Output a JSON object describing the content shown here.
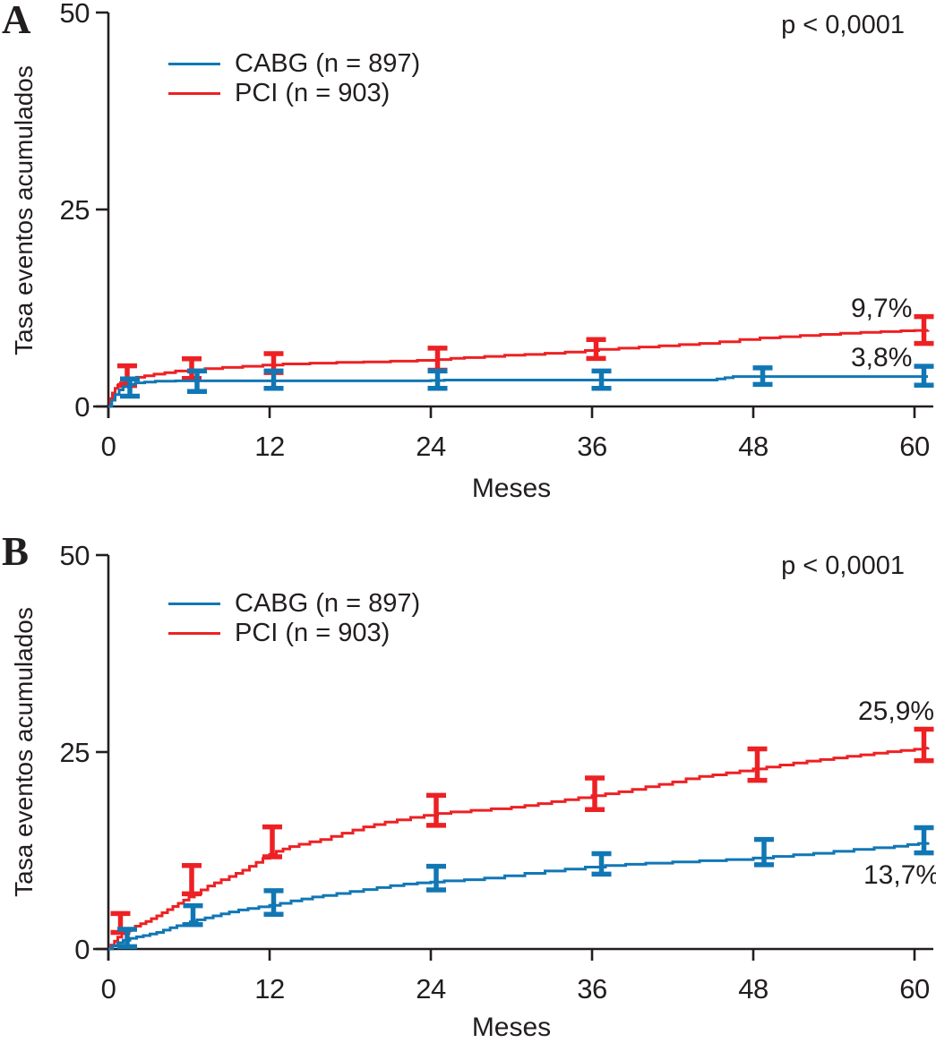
{
  "figure": {
    "background": "#ffffff"
  },
  "colors": {
    "cabg": "#1177b4",
    "pci": "#ed2124",
    "axis": "#221e1f",
    "text": "#221e1f"
  },
  "chart_data": [
    {
      "type": "line",
      "step": true,
      "panel_label": "A",
      "p_value": "p < 0,0001",
      "xlabel": "Meses",
      "ylabel": "Tasa eventos acumulados",
      "axis": {
        "xticks": [
          0,
          12,
          24,
          36,
          48,
          60
        ],
        "yticks": [
          0,
          25,
          50
        ],
        "xlim": [
          0,
          61.5
        ],
        "ylim": [
          0,
          50
        ],
        "grid": false,
        "legend_position": "upper-left"
      },
      "series": [
        {
          "name": "CABG",
          "legend_label": "CABG (n = 897)",
          "color": "#1177b4",
          "end_label": "3,8%",
          "steps": [
            [
              0,
              0
            ],
            [
              0.25,
              0.8
            ],
            [
              0.5,
              1.5
            ],
            [
              0.8,
              2.1
            ],
            [
              1.1,
              2.5
            ],
            [
              1.5,
              2.8
            ],
            [
              2,
              3.0
            ],
            [
              2.7,
              3.1
            ],
            [
              3.5,
              3.2
            ],
            [
              5,
              3.25
            ],
            [
              24,
              3.3
            ],
            [
              25,
              3.35
            ],
            [
              44.8,
              3.35
            ],
            [
              45.3,
              3.5
            ],
            [
              45.9,
              3.65
            ],
            [
              46.5,
              3.8
            ],
            [
              61,
              3.8
            ]
          ],
          "error_bars": [
            {
              "month": 1.6,
              "value": 2.4,
              "half": 1.1
            },
            {
              "month": 6.6,
              "value": 3.2,
              "half": 1.3
            },
            {
              "month": 12.3,
              "value": 3.4,
              "half": 1.1
            },
            {
              "month": 24.5,
              "value": 3.4,
              "half": 1.1
            },
            {
              "month": 36.7,
              "value": 3.4,
              "half": 1.1
            },
            {
              "month": 48.7,
              "value": 3.85,
              "half": 1.05
            },
            {
              "month": 60.7,
              "value": 3.9,
              "half": 1.2
            }
          ]
        },
        {
          "name": "PCI",
          "legend_label": "PCI (n = 903)",
          "color": "#ed2124",
          "end_label": "9,7%",
          "steps": [
            [
              0,
              0
            ],
            [
              0.15,
              1.0
            ],
            [
              0.3,
              1.7
            ],
            [
              0.5,
              2.3
            ],
            [
              0.7,
              2.7
            ],
            [
              0.9,
              3.0
            ],
            [
              1.2,
              3.3
            ],
            [
              1.6,
              3.5
            ],
            [
              2.1,
              3.7
            ],
            [
              2.7,
              3.9
            ],
            [
              3.4,
              4.1
            ],
            [
              4.2,
              4.3
            ],
            [
              5,
              4.5
            ],
            [
              6,
              4.65
            ],
            [
              7.2,
              4.8
            ],
            [
              8.5,
              4.95
            ],
            [
              10,
              5.1
            ],
            [
              11.5,
              5.25
            ],
            [
              13,
              5.4
            ],
            [
              15,
              5.5
            ],
            [
              17,
              5.6
            ],
            [
              19,
              5.65
            ],
            [
              21,
              5.75
            ],
            [
              23,
              5.85
            ],
            [
              24.5,
              5.95
            ],
            [
              25.5,
              6.1
            ],
            [
              26.5,
              6.2
            ],
            [
              28,
              6.35
            ],
            [
              29.5,
              6.5
            ],
            [
              31,
              6.6
            ],
            [
              32.5,
              6.75
            ],
            [
              34,
              6.9
            ],
            [
              35.5,
              7.1
            ],
            [
              36.5,
              7.25
            ],
            [
              38,
              7.4
            ],
            [
              39.5,
              7.55
            ],
            [
              41,
              7.7
            ],
            [
              42.5,
              7.85
            ],
            [
              44,
              8.0
            ],
            [
              45.5,
              8.2
            ],
            [
              47,
              8.5
            ],
            [
              48.5,
              8.7
            ],
            [
              50,
              8.85
            ],
            [
              51.5,
              9.0
            ],
            [
              53,
              9.15
            ],
            [
              54.5,
              9.3
            ],
            [
              56,
              9.4
            ],
            [
              57.5,
              9.5
            ],
            [
              59,
              9.6
            ],
            [
              60,
              9.65
            ],
            [
              61,
              9.7
            ]
          ],
          "error_bars": [
            {
              "month": 1.4,
              "value": 3.9,
              "half": 1.25
            },
            {
              "month": 6.2,
              "value": 4.8,
              "half": 1.25
            },
            {
              "month": 12.3,
              "value": 5.5,
              "half": 1.2
            },
            {
              "month": 24.5,
              "value": 6.0,
              "half": 1.4
            },
            {
              "month": 36.3,
              "value": 7.3,
              "half": 1.2
            },
            {
              "month": 60.7,
              "value": 9.7,
              "half": 1.7
            }
          ]
        }
      ]
    },
    {
      "type": "line",
      "step": true,
      "panel_label": "B",
      "p_value": "p < 0,0001",
      "xlabel": "Meses",
      "ylabel": "Tasa eventos acumulados",
      "axis": {
        "xticks": [
          0,
          12,
          24,
          36,
          48,
          60
        ],
        "yticks": [
          0,
          25,
          50
        ],
        "xlim": [
          0,
          61.5
        ],
        "ylim": [
          0,
          50
        ],
        "grid": false,
        "legend_position": "upper-left"
      },
      "series": [
        {
          "name": "CABG",
          "legend_label": "CABG (n = 897)",
          "color": "#1177b4",
          "end_label": "13,7%",
          "steps": [
            [
              0,
              0
            ],
            [
              0.3,
              0.4
            ],
            [
              0.7,
              0.8
            ],
            [
              1.1,
              1.1
            ],
            [
              1.6,
              1.35
            ],
            [
              2.1,
              1.55
            ],
            [
              2.6,
              1.7
            ],
            [
              3.1,
              1.9
            ],
            [
              3.6,
              2.1
            ],
            [
              4.1,
              2.4
            ],
            [
              4.6,
              2.7
            ],
            [
              5.1,
              2.95
            ],
            [
              5.6,
              3.2
            ],
            [
              6.1,
              3.45
            ],
            [
              6.6,
              3.7
            ],
            [
              7.2,
              3.95
            ],
            [
              7.8,
              4.2
            ],
            [
              8.4,
              4.45
            ],
            [
              9,
              4.7
            ],
            [
              9.7,
              4.95
            ],
            [
              10.4,
              5.15
            ],
            [
              11.2,
              5.35
            ],
            [
              12,
              5.55
            ],
            [
              12.8,
              5.8
            ],
            [
              13.6,
              6.1
            ],
            [
              14.4,
              6.35
            ],
            [
              15.2,
              6.6
            ],
            [
              16,
              6.8
            ],
            [
              17,
              7.05
            ],
            [
              18,
              7.3
            ],
            [
              19,
              7.55
            ],
            [
              20,
              7.8
            ],
            [
              21,
              8.05
            ],
            [
              22,
              8.25
            ],
            [
              23,
              8.4
            ],
            [
              24,
              8.5
            ],
            [
              25,
              8.65
            ],
            [
              26.5,
              8.8
            ],
            [
              28,
              9.0
            ],
            [
              29.5,
              9.3
            ],
            [
              31,
              9.6
            ],
            [
              32.5,
              9.9
            ],
            [
              34,
              10.15
            ],
            [
              35.5,
              10.4
            ],
            [
              37,
              10.6
            ],
            [
              38.5,
              10.75
            ],
            [
              40,
              10.9
            ],
            [
              42,
              11.05
            ],
            [
              44,
              11.2
            ],
            [
              46,
              11.35
            ],
            [
              48,
              11.55
            ],
            [
              49.5,
              11.75
            ],
            [
              51,
              11.95
            ],
            [
              52.5,
              12.15
            ],
            [
              54,
              12.4
            ],
            [
              55.5,
              12.65
            ],
            [
              57,
              12.85
            ],
            [
              58.5,
              13.05
            ],
            [
              59.5,
              13.25
            ],
            [
              60.3,
              13.4
            ],
            [
              61,
              13.55
            ]
          ],
          "error_bars": [
            {
              "month": 1.4,
              "value": 1.4,
              "half": 1.1
            },
            {
              "month": 6.3,
              "value": 4.3,
              "half": 1.2
            },
            {
              "month": 12.3,
              "value": 5.9,
              "half": 1.5
            },
            {
              "month": 24.4,
              "value": 9.0,
              "half": 1.5
            },
            {
              "month": 36.7,
              "value": 10.8,
              "half": 1.3
            },
            {
              "month": 48.8,
              "value": 12.3,
              "half": 1.6
            },
            {
              "month": 60.7,
              "value": 13.8,
              "half": 1.6
            }
          ]
        },
        {
          "name": "PCI",
          "legend_label": "PCI (n = 903)",
          "color": "#ed2124",
          "end_label": "25,9%",
          "steps": [
            [
              0,
              0
            ],
            [
              0.2,
              0.5
            ],
            [
              0.45,
              1.0
            ],
            [
              0.7,
              1.5
            ],
            [
              1,
              1.95
            ],
            [
              1.3,
              2.3
            ],
            [
              1.65,
              2.6
            ],
            [
              2,
              2.9
            ],
            [
              2.4,
              3.2
            ],
            [
              2.8,
              3.5
            ],
            [
              3.2,
              3.85
            ],
            [
              3.6,
              4.2
            ],
            [
              4,
              4.6
            ],
            [
              4.4,
              5.0
            ],
            [
              4.8,
              5.4
            ],
            [
              5.2,
              5.8
            ],
            [
              5.6,
              6.2
            ],
            [
              6,
              6.6
            ],
            [
              6.4,
              7.0
            ],
            [
              6.9,
              7.5
            ],
            [
              7.4,
              8.0
            ],
            [
              7.9,
              8.4
            ],
            [
              8.4,
              8.8
            ],
            [
              9,
              9.2
            ],
            [
              9.5,
              9.6
            ],
            [
              10,
              10.0
            ],
            [
              10.5,
              10.5
            ],
            [
              11,
              11.0
            ],
            [
              11.5,
              11.5
            ],
            [
              12,
              12.0
            ],
            [
              12.5,
              12.4
            ],
            [
              13,
              12.7
            ],
            [
              13.5,
              13.0
            ],
            [
              14.2,
              13.3
            ],
            [
              15,
              13.6
            ],
            [
              15.8,
              13.9
            ],
            [
              16.6,
              14.3
            ],
            [
              17.4,
              14.7
            ],
            [
              18.2,
              15.1
            ],
            [
              19,
              15.5
            ],
            [
              19.8,
              15.8
            ],
            [
              20.6,
              16.1
            ],
            [
              21.5,
              16.4
            ],
            [
              22.5,
              16.7
            ],
            [
              23.5,
              16.95
            ],
            [
              24.5,
              17.2
            ],
            [
              25.5,
              17.4
            ],
            [
              27,
              17.6
            ],
            [
              28.5,
              17.8
            ],
            [
              30,
              18.0
            ],
            [
              31,
              18.2
            ],
            [
              32,
              18.45
            ],
            [
              33,
              18.7
            ],
            [
              34,
              18.95
            ],
            [
              35,
              19.2
            ],
            [
              36,
              19.45
            ],
            [
              37,
              19.7
            ],
            [
              38,
              19.95
            ],
            [
              39,
              20.25
            ],
            [
              40,
              20.6
            ],
            [
              41,
              20.9
            ],
            [
              42,
              21.2
            ],
            [
              43,
              21.6
            ],
            [
              44,
              21.9
            ],
            [
              45,
              22.1
            ],
            [
              46,
              22.35
            ],
            [
              47,
              22.6
            ],
            [
              48,
              22.85
            ],
            [
              49,
              23.1
            ],
            [
              50,
              23.35
            ],
            [
              51,
              23.6
            ],
            [
              52,
              23.85
            ],
            [
              53,
              24.05
            ],
            [
              54,
              24.25
            ],
            [
              55,
              24.45
            ],
            [
              56,
              24.65
            ],
            [
              57,
              24.85
            ],
            [
              58,
              25.05
            ],
            [
              59,
              25.2
            ],
            [
              60,
              25.35
            ],
            [
              60.7,
              25.5
            ],
            [
              61,
              25.6
            ]
          ],
          "error_bars": [
            {
              "month": 0.9,
              "value": 3.3,
              "half": 1.2
            },
            {
              "month": 6.2,
              "value": 8.8,
              "half": 1.8
            },
            {
              "month": 12.2,
              "value": 13.6,
              "half": 1.9
            },
            {
              "month": 24.4,
              "value": 17.6,
              "half": 1.9
            },
            {
              "month": 36.2,
              "value": 19.7,
              "half": 2.0
            },
            {
              "month": 48.3,
              "value": 23.4,
              "half": 2.0
            },
            {
              "month": 60.7,
              "value": 25.9,
              "half": 2.0
            }
          ]
        }
      ]
    }
  ]
}
